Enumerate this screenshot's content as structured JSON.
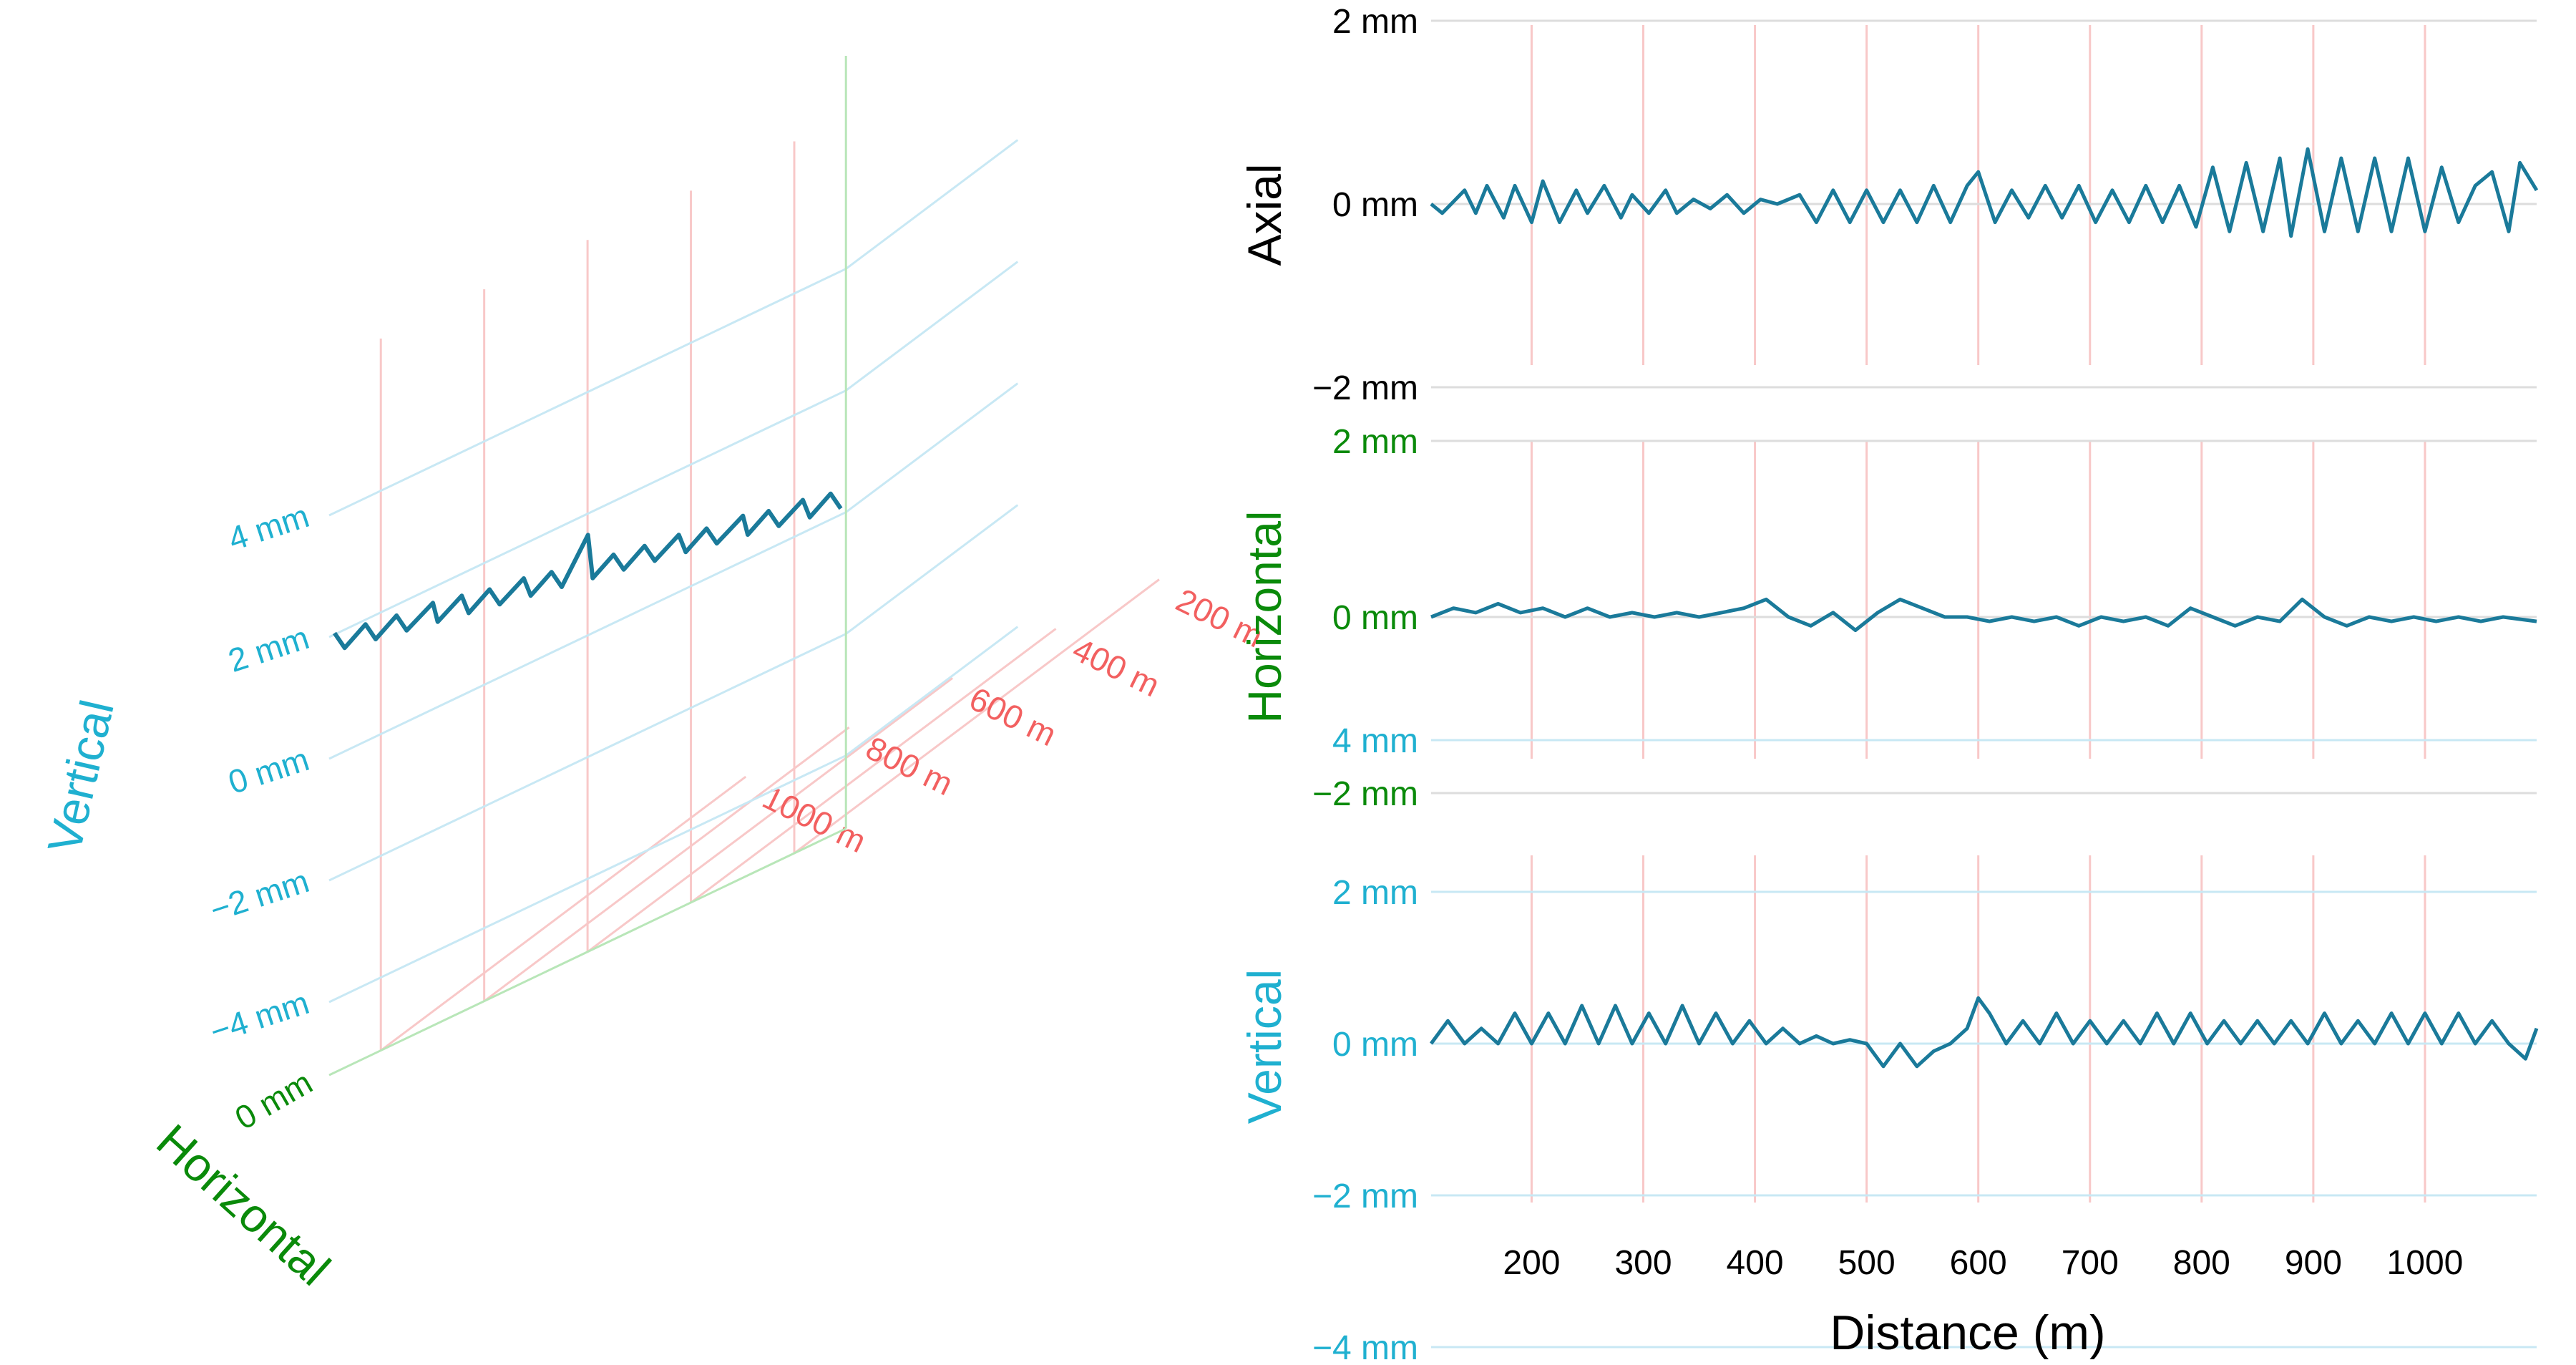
{
  "colors": {
    "axial_label": "#000000",
    "horizontal_label": "#0a8a0a",
    "vertical_label": "#1fb0d0",
    "distance_label": "#f26060",
    "trace": "#1a7a9a",
    "grid_distance": "#f8c8c8",
    "grid_vertical": "#c8e8f4",
    "grid_horizontal": "#b8e6b8",
    "grid_neutral": "#dddddd"
  },
  "chart_data": [
    {
      "type": "line3d",
      "xlabel": "Horizontal",
      "ylabel": "Vertical",
      "zlabel": "",
      "x_ticks": [
        "0 mm"
      ],
      "y_ticks": [
        "−4 mm",
        "−2 mm",
        "0 mm",
        "2 mm",
        "4 mm"
      ],
      "y_tick_values": [
        -4,
        -2,
        0,
        2,
        4
      ],
      "z_ticks": [
        "200 m",
        "400 m",
        "600 m",
        "800 m",
        "1000 m"
      ],
      "z_tick_values": [
        200,
        400,
        600,
        800,
        1000
      ],
      "x_range_mm": [
        0,
        4
      ],
      "y_range_mm": [
        -4,
        4
      ],
      "z_range_m": [
        100,
        1100
      ],
      "series": [
        {
          "distance": [
            110,
            140,
            170,
            200,
            230,
            260,
            290,
            320,
            350,
            380,
            410,
            440,
            470,
            500,
            530,
            560,
            590,
            620,
            650,
            680,
            710,
            740,
            770,
            800,
            830,
            860,
            890,
            920,
            950,
            980,
            1010,
            1040,
            1070,
            1100
          ],
          "vertical": [
            0.1,
            0.4,
            0.2,
            0.5,
            0.3,
            0.6,
            0.4,
            0.7,
            0.5,
            0.8,
            0.6,
            0.9,
            0.7,
            1.0,
            0.8,
            1.1,
            0.9,
            1.6,
            1.0,
            1.3,
            1.1,
            1.4,
            1.2,
            1.5,
            1.3,
            1.6,
            1.4,
            1.7,
            1.5,
            1.8,
            1.6,
            1.9,
            1.7,
            2.0
          ],
          "horizontal": [
            0,
            0.05,
            0,
            0.08,
            0,
            0.05,
            0,
            0.1,
            0,
            0.05,
            0,
            0.08,
            0,
            0.05,
            0,
            0.05,
            0,
            0.1,
            0,
            0.05,
            0,
            0.08,
            0,
            0.05,
            0,
            0.08,
            0,
            0.1,
            0,
            0.05,
            0,
            0.05,
            0,
            0.05
          ]
        }
      ]
    },
    {
      "type": "line",
      "ylabel": "Axial",
      "xlabel": "",
      "y_ticks": [
        "2 mm",
        "0 mm",
        "−2 mm"
      ],
      "y_tick_values": [
        2,
        0,
        -2
      ],
      "ylim": [
        -3.5,
        3.5
      ],
      "xlim": [
        110,
        1100
      ],
      "series": [
        {
          "x": [
            110,
            120,
            140,
            150,
            160,
            175,
            185,
            200,
            210,
            225,
            240,
            250,
            265,
            280,
            290,
            305,
            320,
            330,
            345,
            360,
            375,
            390,
            405,
            420,
            440,
            455,
            470,
            485,
            500,
            515,
            530,
            545,
            560,
            575,
            590,
            600,
            615,
            630,
            645,
            660,
            675,
            690,
            705,
            720,
            735,
            750,
            765,
            780,
            795,
            810,
            825,
            840,
            855,
            870,
            880,
            895,
            910,
            925,
            940,
            955,
            970,
            985,
            1000,
            1015,
            1030,
            1045,
            1060,
            1075,
            1085,
            1100
          ],
          "y": [
            0,
            -0.1,
            0.15,
            -0.1,
            0.2,
            -0.15,
            0.2,
            -0.2,
            0.25,
            -0.2,
            0.15,
            -0.1,
            0.2,
            -0.15,
            0.1,
            -0.1,
            0.15,
            -0.1,
            0.05,
            -0.05,
            0.1,
            -0.1,
            0.05,
            0,
            0.1,
            -0.2,
            0.15,
            -0.2,
            0.15,
            -0.2,
            0.15,
            -0.2,
            0.2,
            -0.2,
            0.2,
            0.35,
            -0.2,
            0.15,
            -0.15,
            0.2,
            -0.15,
            0.2,
            -0.2,
            0.15,
            -0.2,
            0.2,
            -0.2,
            0.2,
            -0.25,
            0.4,
            -0.3,
            0.45,
            -0.3,
            0.5,
            -0.35,
            0.6,
            -0.3,
            0.5,
            -0.3,
            0.5,
            -0.3,
            0.5,
            -0.3,
            0.4,
            -0.2,
            0.2,
            0.35,
            -0.3,
            0.45,
            0.15
          ]
        }
      ]
    },
    {
      "type": "line",
      "ylabel": "Horizontal",
      "xlabel": "",
      "y_ticks": [
        "2 mm",
        "0 mm",
        "−2 mm"
      ],
      "y_tick_values": [
        2,
        0,
        -2
      ],
      "ylim": [
        -3.5,
        3.5
      ],
      "xlim": [
        110,
        1100
      ],
      "series": [
        {
          "x": [
            110,
            130,
            150,
            170,
            190,
            210,
            230,
            250,
            270,
            290,
            310,
            330,
            350,
            370,
            390,
            410,
            430,
            450,
            470,
            490,
            510,
            530,
            550,
            570,
            590,
            610,
            630,
            650,
            670,
            690,
            710,
            730,
            750,
            770,
            790,
            810,
            830,
            850,
            870,
            890,
            910,
            930,
            950,
            970,
            990,
            1010,
            1030,
            1050,
            1070,
            1100
          ],
          "y": [
            0,
            0.1,
            0.05,
            0.15,
            0.05,
            0.1,
            0,
            0.1,
            0,
            0.05,
            0,
            0.05,
            0,
            0.05,
            0.1,
            0.2,
            0,
            -0.1,
            0.05,
            -0.15,
            0.05,
            0.2,
            0.1,
            0,
            0,
            -0.05,
            0,
            -0.05,
            0,
            -0.1,
            0,
            -0.05,
            0,
            -0.1,
            0.1,
            0,
            -0.1,
            0,
            -0.05,
            0.2,
            0,
            -0.1,
            0,
            -0.05,
            0,
            -0.05,
            0,
            -0.05,
            0,
            -0.05
          ]
        }
      ]
    },
    {
      "type": "line",
      "ylabel": "Vertical",
      "xlabel": "Distance (m)",
      "y_ticks": [
        "4 mm",
        "2 mm",
        "0 mm",
        "−2 mm",
        "−4 mm"
      ],
      "y_tick_values": [
        4,
        2,
        0,
        -2,
        -4
      ],
      "x_ticks": [
        "200",
        "300",
        "400",
        "500",
        "600",
        "700",
        "800",
        "900",
        "1000"
      ],
      "x_tick_values": [
        200,
        300,
        400,
        500,
        600,
        700,
        800,
        900,
        1000
      ],
      "ylim": [
        -4.5,
        5
      ],
      "xlim": [
        110,
        1100
      ],
      "series": [
        {
          "x": [
            110,
            125,
            140,
            155,
            170,
            185,
            200,
            215,
            230,
            245,
            260,
            275,
            290,
            305,
            320,
            335,
            350,
            365,
            380,
            395,
            410,
            425,
            440,
            455,
            470,
            485,
            500,
            515,
            530,
            545,
            560,
            575,
            590,
            600,
            610,
            625,
            640,
            655,
            670,
            685,
            700,
            715,
            730,
            745,
            760,
            775,
            790,
            805,
            820,
            835,
            850,
            865,
            880,
            895,
            910,
            925,
            940,
            955,
            970,
            985,
            1000,
            1015,
            1030,
            1045,
            1060,
            1075,
            1090,
            1100
          ],
          "y": [
            0,
            0.3,
            0,
            0.2,
            0,
            0.4,
            0,
            0.4,
            0,
            0.5,
            0,
            0.5,
            0,
            0.4,
            0,
            0.5,
            0,
            0.4,
            0,
            0.3,
            0,
            0.2,
            0,
            0.1,
            0,
            0.05,
            0,
            -0.3,
            0,
            -0.3,
            -0.1,
            0,
            0.2,
            0.6,
            0.4,
            0,
            0.3,
            0,
            0.4,
            0,
            0.3,
            0,
            0.3,
            0,
            0.4,
            0,
            0.4,
            0,
            0.3,
            0,
            0.3,
            0,
            0.3,
            0,
            0.4,
            0,
            0.3,
            0,
            0.4,
            0,
            0.4,
            0,
            0.4,
            0,
            0.3,
            0,
            -0.2,
            0.2
          ]
        }
      ]
    }
  ]
}
